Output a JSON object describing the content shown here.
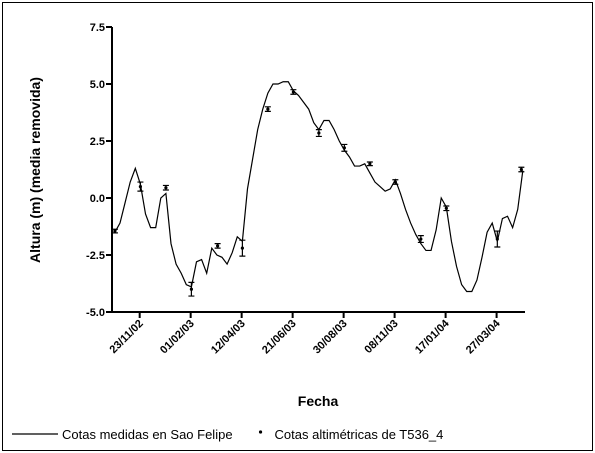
{
  "chart_data": {
    "type": "line",
    "x_label": "Fecha",
    "y_label": "Altura (m) (media removida)",
    "xlim": [
      "16/10/02",
      "05/05/04"
    ],
    "xticks": [
      "23/11/02",
      "01/02/03",
      "12/04/03",
      "21/06/03",
      "30/08/03",
      "08/11/03",
      "17/01/04",
      "27/03/04"
    ],
    "ylim": [
      -5,
      7.5
    ],
    "yticks": [
      {
        "value": -5,
        "label": "-5.0"
      },
      {
        "value": -2.5,
        "label": "-2.5"
      },
      {
        "value": 0,
        "label": "0.0"
      },
      {
        "value": 2.5,
        "label": "2.5"
      },
      {
        "value": 5,
        "label": "5.0"
      },
      7.5
    ],
    "legend": "bottom",
    "series": [
      {
        "name": "Cotas medidas en Sao Felipe",
        "type": "line",
        "color": "#000000",
        "x": [
          "20/10/02",
          "27/10/02",
          "03/11/02",
          "10/11/02",
          "17/11/02",
          "24/11/02",
          "01/12/02",
          "08/12/02",
          "15/12/02",
          "22/12/02",
          "29/12/02",
          "05/01/03",
          "12/01/03",
          "19/01/03",
          "26/01/03",
          "02/02/03",
          "09/02/03",
          "16/02/03",
          "23/02/03",
          "02/03/03",
          "09/03/03",
          "16/03/03",
          "23/03/03",
          "30/03/03",
          "06/04/03",
          "13/04/03",
          "20/04/03",
          "27/04/03",
          "04/05/03",
          "11/05/03",
          "18/05/03",
          "25/05/03",
          "01/06/03",
          "08/06/03",
          "15/06/03",
          "22/06/03",
          "29/06/03",
          "06/07/03",
          "13/07/03",
          "20/07/03",
          "27/07/03",
          "03/08/03",
          "10/08/03",
          "17/08/03",
          "24/08/03",
          "31/08/03",
          "07/09/03",
          "14/09/03",
          "21/09/03",
          "28/09/03",
          "05/10/03",
          "12/10/03",
          "19/10/03",
          "26/10/03",
          "02/11/03",
          "09/11/03",
          "16/11/03",
          "23/11/03",
          "30/11/03",
          "07/12/03",
          "14/12/03",
          "21/12/03",
          "28/12/03",
          "04/01/04",
          "11/01/04",
          "18/01/04",
          "25/01/04",
          "01/02/04",
          "08/02/04",
          "15/02/04",
          "22/02/04",
          "29/02/04",
          "07/03/04",
          "14/03/04",
          "21/03/04",
          "28/03/04",
          "04/04/04",
          "11/04/04",
          "18/04/04",
          "25/04/04",
          "02/05/04"
        ],
        "values": [
          -1.5,
          -1.1,
          -0.2,
          0.7,
          1.3,
          0.6,
          -0.7,
          -1.3,
          -1.3,
          0.0,
          0.2,
          -2.0,
          -2.9,
          -3.3,
          -3.8,
          -3.9,
          -2.8,
          -2.7,
          -3.3,
          -2.2,
          -2.5,
          -2.6,
          -2.9,
          -2.4,
          -1.7,
          -1.9,
          0.4,
          1.7,
          3.0,
          3.9,
          4.6,
          5.0,
          5.0,
          5.1,
          5.1,
          4.7,
          4.5,
          4.2,
          3.9,
          3.3,
          3.0,
          3.4,
          3.4,
          3.0,
          2.5,
          2.1,
          1.8,
          1.4,
          1.4,
          1.5,
          1.1,
          0.7,
          0.5,
          0.3,
          0.4,
          0.8,
          0.2,
          -0.5,
          -1.1,
          -1.6,
          -2.0,
          -2.3,
          -2.3,
          -1.4,
          0.0,
          -0.4,
          -1.9,
          -3.0,
          -3.8,
          -4.1,
          -4.1,
          -3.6,
          -2.6,
          -1.5,
          -1.1,
          -1.9,
          -0.9,
          -0.8,
          -1.3,
          -0.5,
          1.2
        ]
      },
      {
        "name": "Cotas altimétricas de T536_4",
        "type": "scatter",
        "color": "#000000",
        "x": [
          "20/10/02",
          "24/11/02",
          "29/12/02",
          "02/02/03",
          "10/03/03",
          "13/04/03",
          "18/05/03",
          "22/06/03",
          "27/07/03",
          "31/08/03",
          "05/10/03",
          "09/11/03",
          "14/12/03",
          "18/01/04",
          "28/03/04",
          "30/04/04"
        ],
        "values": [
          -1.45,
          0.5,
          0.45,
          -4.0,
          -2.1,
          -2.2,
          3.9,
          4.65,
          2.85,
          2.2,
          1.5,
          0.7,
          -1.8,
          -0.45,
          -1.8,
          1.25
        ],
        "errors": [
          0.08,
          0.2,
          0.1,
          0.3,
          0.1,
          0.35,
          0.1,
          0.1,
          0.15,
          0.15,
          0.08,
          0.1,
          0.15,
          0.1,
          0.35,
          0.1
        ]
      }
    ]
  }
}
